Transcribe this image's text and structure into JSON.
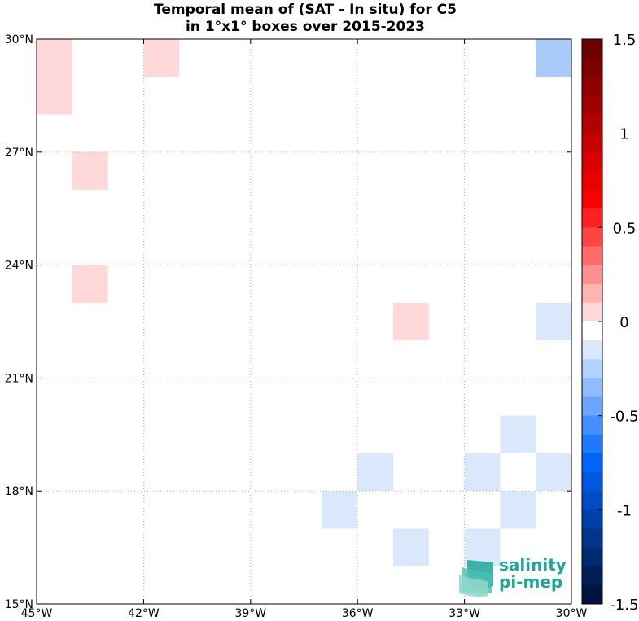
{
  "chart_data": {
    "type": "heatmap",
    "title_line1": "Temporal mean of (SAT - In situ) for C5",
    "title_line2": "in 1°x1° boxes over 2015-2023",
    "xlim": [
      -45,
      -30
    ],
    "ylim": [
      15,
      30
    ],
    "grid": true,
    "x_ticks": [
      -45,
      -42,
      -39,
      -36,
      -33,
      -30
    ],
    "y_ticks": [
      15,
      18,
      21,
      24,
      27,
      30
    ],
    "x_tick_labels": [
      "45°W",
      "42°W",
      "39°W",
      "36°W",
      "33°W",
      "30°W"
    ],
    "y_tick_labels": [
      "15°N",
      "18°N",
      "21°N",
      "24°N",
      "27°N",
      "30°N"
    ],
    "colorbar": {
      "min": -1.5,
      "max": 1.5,
      "ticks": [
        1.5,
        1,
        0.5,
        0,
        -0.5,
        -1,
        -1.5
      ],
      "tick_labels": [
        "1.5",
        "1",
        "0.5",
        "0",
        "-0.5",
        "-1",
        "-1.5"
      ],
      "colors_top_to_bottom": [
        "#6b0000",
        "#7d0000",
        "#8f0000",
        "#a10000",
        "#b30000",
        "#c60000",
        "#d80000",
        "#ea0000",
        "#fb0000",
        "#ff2020",
        "#ff4545",
        "#ff6a6a",
        "#ff8f8f",
        "#ffb4b4",
        "#ffd9d9",
        "#ffffff",
        "#d9e8ff",
        "#b4d2ff",
        "#8fbcff",
        "#6aa6ff",
        "#4590ff",
        "#207aff",
        "#0064fb",
        "#0058e0",
        "#004cc4",
        "#0040a8",
        "#00358c",
        "#002a70",
        "#001f56",
        "#00143f"
      ]
    },
    "cells": [
      {
        "lon": -45,
        "lat": 29,
        "value": 0.1,
        "color": "#ffd9d9"
      },
      {
        "lon": -45,
        "lat": 28,
        "value": 0.1,
        "color": "#ffd9d9"
      },
      {
        "lon": -42,
        "lat": 29,
        "value": 0.1,
        "color": "#ffd9d9"
      },
      {
        "lon": -31,
        "lat": 29,
        "value": -0.3,
        "color": "#a8ccf7"
      },
      {
        "lon": -44,
        "lat": 26,
        "value": 0.1,
        "color": "#ffd9d9"
      },
      {
        "lon": -44,
        "lat": 23,
        "value": 0.1,
        "color": "#ffd9d9"
      },
      {
        "lon": -35,
        "lat": 22,
        "value": 0.1,
        "color": "#ffd9d9"
      },
      {
        "lon": -31,
        "lat": 22,
        "value": -0.1,
        "color": "#d9e8fb"
      },
      {
        "lon": -32,
        "lat": 19,
        "value": -0.1,
        "color": "#d9e8fb"
      },
      {
        "lon": -36,
        "lat": 18,
        "value": -0.1,
        "color": "#d9e8fb"
      },
      {
        "lon": -33,
        "lat": 18,
        "value": -0.1,
        "color": "#d9e8fb"
      },
      {
        "lon": -31,
        "lat": 18,
        "value": -0.1,
        "color": "#d9e8fb"
      },
      {
        "lon": -37,
        "lat": 17,
        "value": -0.1,
        "color": "#d9e8fb"
      },
      {
        "lon": -32,
        "lat": 17,
        "value": -0.1,
        "color": "#d9e8fb"
      },
      {
        "lon": -35,
        "lat": 16,
        "value": -0.1,
        "color": "#d9e8fb"
      },
      {
        "lon": -33,
        "lat": 16,
        "value": -0.1,
        "color": "#d9e8fb"
      }
    ]
  },
  "logo": {
    "line1": "salinity",
    "line2": "pi-mep",
    "color": "#1fa59a"
  }
}
